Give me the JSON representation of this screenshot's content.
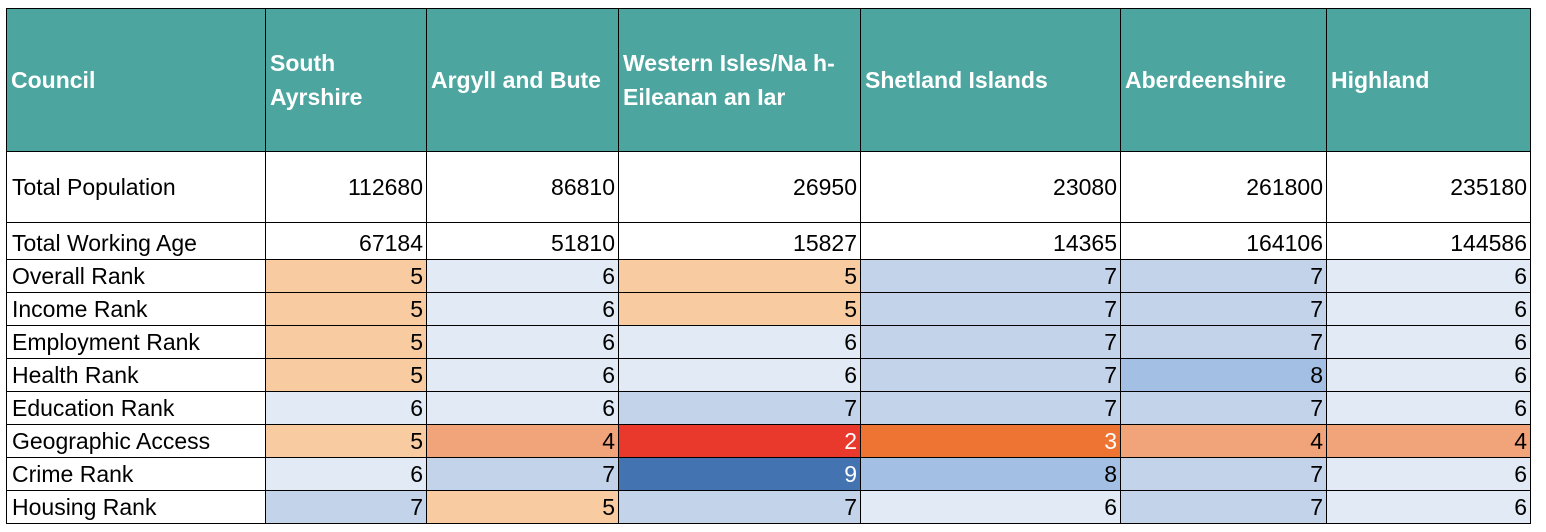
{
  "chart_data": {
    "type": "table",
    "columns": [
      "Council",
      "South Ayrshire",
      "Argyll and Bute",
      "Western Isles/Na h-Eileanan an Iar",
      "Shetland Islands",
      "Aberdeenshire",
      "Highland"
    ],
    "rows": [
      {
        "label": "Total Population",
        "values": [
          "112680",
          "86810",
          "26950",
          "23080",
          "261800",
          "235180"
        ],
        "colors": [
          "#ffffff",
          "#ffffff",
          "#ffffff",
          "#ffffff",
          "#ffffff",
          "#ffffff"
        ]
      },
      {
        "label": "Total Working Age",
        "values": [
          "67184",
          "51810",
          "15827",
          "14365",
          "164106",
          "144586"
        ],
        "colors": [
          "#ffffff",
          "#ffffff",
          "#ffffff",
          "#ffffff",
          "#ffffff",
          "#ffffff"
        ]
      },
      {
        "label": "Overall Rank",
        "values": [
          "5",
          "6",
          "5",
          "7",
          "7",
          "6"
        ],
        "colors": [
          "#f8cba0",
          "#e2ebf5",
          "#f8cba0",
          "#c3d4ea",
          "#c3d4ea",
          "#e2ebf5"
        ]
      },
      {
        "label": "Income Rank",
        "values": [
          "5",
          "6",
          "5",
          "7",
          "7",
          "6"
        ],
        "colors": [
          "#f8cba0",
          "#e2ebf5",
          "#f8cba0",
          "#c3d4ea",
          "#c3d4ea",
          "#e2ebf5"
        ]
      },
      {
        "label": "Employment Rank",
        "values": [
          "5",
          "6",
          "6",
          "7",
          "7",
          "6"
        ],
        "colors": [
          "#f8cba0",
          "#e2ebf5",
          "#e2ebf5",
          "#c3d4ea",
          "#c3d4ea",
          "#e2ebf5"
        ]
      },
      {
        "label": "Health Rank",
        "values": [
          "5",
          "6",
          "6",
          "7",
          "8",
          "6"
        ],
        "colors": [
          "#f8cba0",
          "#e2ebf5",
          "#e2ebf5",
          "#c3d4ea",
          "#a3bfe3",
          "#e2ebf5"
        ]
      },
      {
        "label": "Education Rank",
        "values": [
          "6",
          "6",
          "7",
          "7",
          "7",
          "6"
        ],
        "colors": [
          "#e2ebf5",
          "#e2ebf5",
          "#c3d4ea",
          "#c3d4ea",
          "#c3d4ea",
          "#e2ebf5"
        ]
      },
      {
        "label": "Geographic Access",
        "values": [
          "5",
          "4",
          "2",
          "3",
          "4",
          "4"
        ],
        "colors": [
          "#f8cba0",
          "#f1a479",
          "#e8392c",
          "#ee7434",
          "#f1a479",
          "#f1a479"
        ],
        "text_colors": [
          "#000000",
          "#000000",
          "#ffffff",
          "#ffffff",
          "#000000",
          "#000000"
        ]
      },
      {
        "label": "Crime Rank",
        "values": [
          "6",
          "7",
          "9",
          "8",
          "7",
          "6"
        ],
        "colors": [
          "#e2ebf5",
          "#c3d4ea",
          "#4473b1",
          "#a3bfe3",
          "#c3d4ea",
          "#e2ebf5"
        ],
        "text_colors": [
          "#000000",
          "#000000",
          "#ffffff",
          "#000000",
          "#000000",
          "#000000"
        ]
      },
      {
        "label": "Housing Rank",
        "values": [
          "7",
          "5",
          "7",
          "6",
          "7",
          "6"
        ],
        "colors": [
          "#c3d4ea",
          "#f8cba0",
          "#c3d4ea",
          "#e2ebf5",
          "#c3d4ea",
          "#e2ebf5"
        ]
      }
    ],
    "header_color": "#4ca59e"
  }
}
